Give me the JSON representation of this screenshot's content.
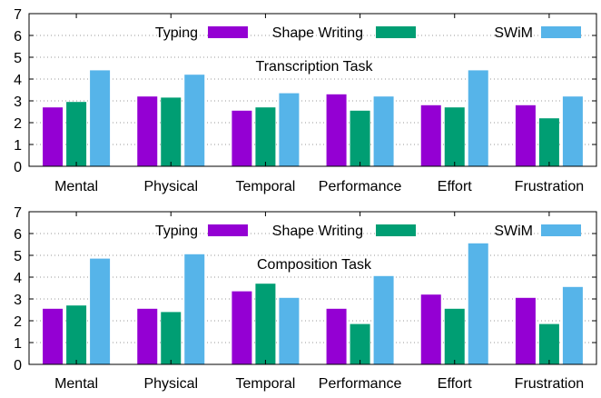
{
  "chart_data": [
    {
      "type": "bar",
      "title": "Transcription Task",
      "categories": [
        "Mental",
        "Physical",
        "Temporal",
        "Performance",
        "Effort",
        "Frustration"
      ],
      "ylim": [
        0,
        7
      ],
      "yticks": [
        "0",
        "1",
        "2",
        "3",
        "4",
        "5",
        "6",
        "7"
      ],
      "grid": "horizontal-dotted",
      "legend_position": "top",
      "series": [
        {
          "name": "Typing",
          "color": "#9400d3",
          "values": [
            2.7,
            3.2,
            2.55,
            3.3,
            2.8,
            2.8
          ]
        },
        {
          "name": "Shape Writing",
          "color": "#009e73",
          "values": [
            2.95,
            3.15,
            2.7,
            2.55,
            2.7,
            2.2
          ]
        },
        {
          "name": "SWiM",
          "color": "#56b4e9",
          "values": [
            4.4,
            4.2,
            3.35,
            3.2,
            4.4,
            3.2
          ]
        }
      ]
    },
    {
      "type": "bar",
      "title": "Composition Task",
      "categories": [
        "Mental",
        "Physical",
        "Temporal",
        "Performance",
        "Effort",
        "Frustration"
      ],
      "ylim": [
        0,
        7
      ],
      "yticks": [
        "0",
        "1",
        "2",
        "3",
        "4",
        "5",
        "6",
        "7"
      ],
      "grid": "horizontal-dotted",
      "legend_position": "top",
      "series": [
        {
          "name": "Typing",
          "color": "#9400d3",
          "values": [
            2.55,
            2.55,
            3.35,
            2.55,
            3.2,
            3.05
          ]
        },
        {
          "name": "Shape Writing",
          "color": "#009e73",
          "values": [
            2.7,
            2.4,
            3.7,
            1.85,
            2.55,
            1.85
          ]
        },
        {
          "name": "SWiM",
          "color": "#56b4e9",
          "values": [
            4.85,
            5.05,
            3.05,
            4.05,
            5.55,
            3.55
          ]
        }
      ]
    }
  ]
}
